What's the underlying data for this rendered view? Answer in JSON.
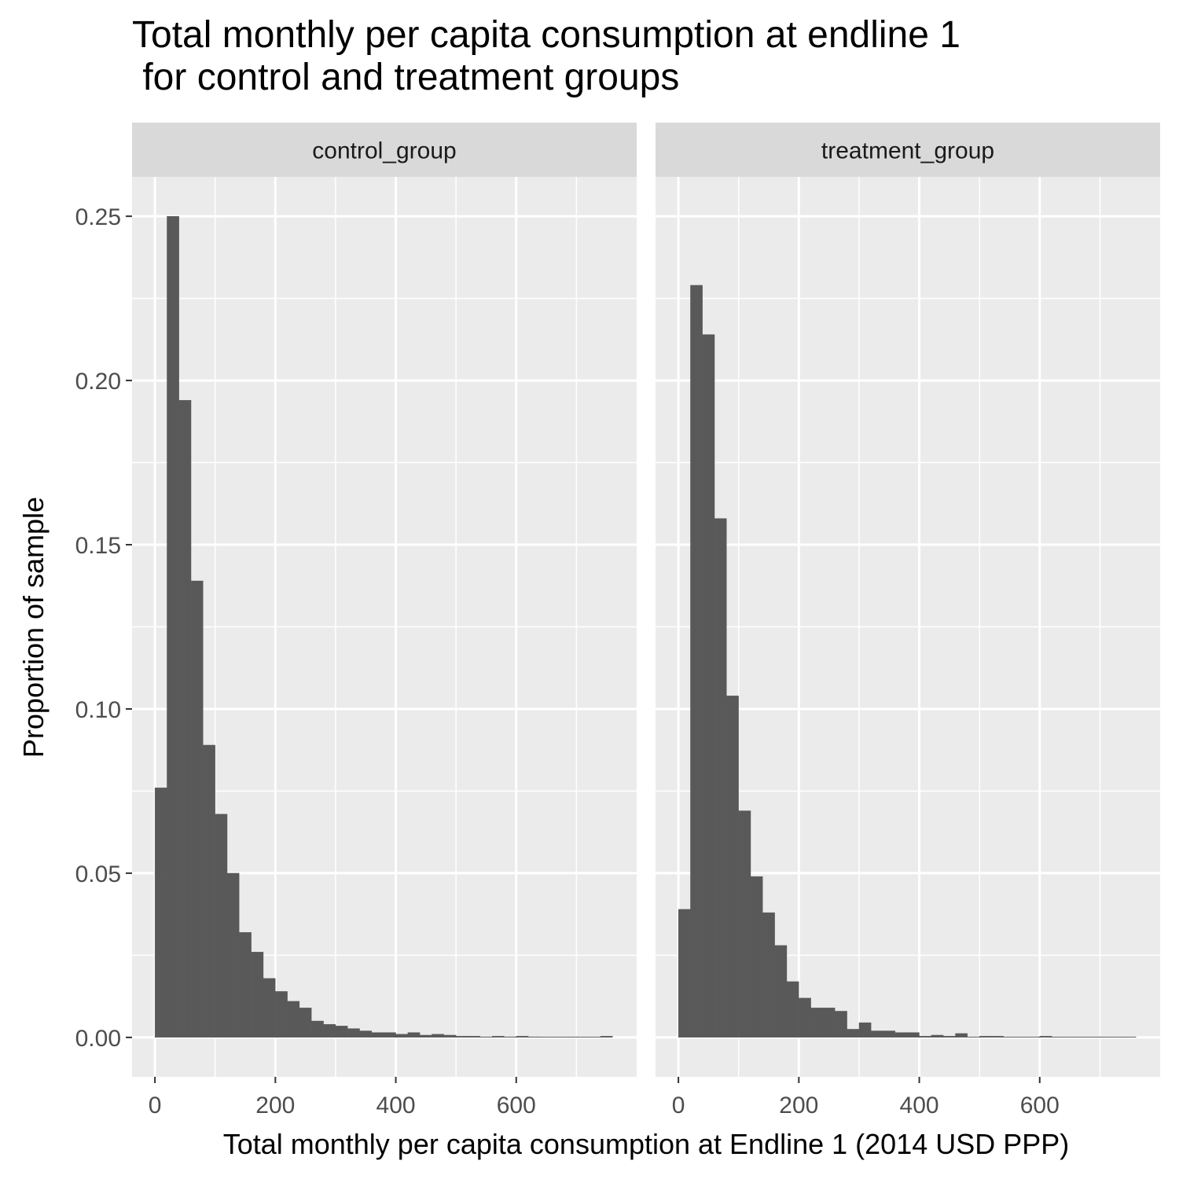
{
  "chart_data": {
    "type": "bar",
    "title": "Total monthly per capita consumption at endline 1\n for control and treatment groups",
    "xlabel": "Total monthly per capita consumption at Endline 1 (2014 USD PPP)",
    "ylabel": "Proportion of sample",
    "xlim": [
      -38,
      800
    ],
    "ylim": [
      -0.012,
      0.262
    ],
    "x_ticks": [
      0,
      200,
      400,
      600
    ],
    "y_ticks": [
      0.0,
      0.05,
      0.1,
      0.15,
      0.2,
      0.25
    ],
    "y_tick_labels": [
      "0.00",
      "0.05",
      "0.10",
      "0.15",
      "0.20",
      "0.25"
    ],
    "bin_width": 20,
    "grid": true,
    "colors": {
      "panel_background": "#ebebeb",
      "strip_background": "#d9d9d9",
      "bar_fill": "#595959",
      "grid": "#ffffff"
    },
    "panels": [
      {
        "name": "control_group",
        "bins": [
          {
            "x": 0,
            "value": 0.076
          },
          {
            "x": 20,
            "value": 0.25
          },
          {
            "x": 40,
            "value": 0.194
          },
          {
            "x": 60,
            "value": 0.139
          },
          {
            "x": 80,
            "value": 0.089
          },
          {
            "x": 100,
            "value": 0.068
          },
          {
            "x": 120,
            "value": 0.05
          },
          {
            "x": 140,
            "value": 0.032
          },
          {
            "x": 160,
            "value": 0.026
          },
          {
            "x": 180,
            "value": 0.018
          },
          {
            "x": 200,
            "value": 0.014
          },
          {
            "x": 220,
            "value": 0.011
          },
          {
            "x": 240,
            "value": 0.009
          },
          {
            "x": 260,
            "value": 0.005
          },
          {
            "x": 280,
            "value": 0.004
          },
          {
            "x": 300,
            "value": 0.0035
          },
          {
            "x": 320,
            "value": 0.0027
          },
          {
            "x": 340,
            "value": 0.002
          },
          {
            "x": 360,
            "value": 0.0015
          },
          {
            "x": 380,
            "value": 0.0015
          },
          {
            "x": 400,
            "value": 0.001
          },
          {
            "x": 420,
            "value": 0.0015
          },
          {
            "x": 440,
            "value": 0.0007
          },
          {
            "x": 460,
            "value": 0.001
          },
          {
            "x": 480,
            "value": 0.0007
          },
          {
            "x": 500,
            "value": 0.0004
          },
          {
            "x": 520,
            "value": 0.0004
          },
          {
            "x": 540,
            "value": 0.0002
          },
          {
            "x": 560,
            "value": 0.0004
          },
          {
            "x": 580,
            "value": 0.0002
          },
          {
            "x": 600,
            "value": 0.0004
          },
          {
            "x": 620,
            "value": 0.0002
          },
          {
            "x": 640,
            "value": 0.0
          },
          {
            "x": 660,
            "value": 0.0
          },
          {
            "x": 680,
            "value": 0.0
          },
          {
            "x": 700,
            "value": 0.0
          },
          {
            "x": 720,
            "value": 0.0
          },
          {
            "x": 740,
            "value": 0.0004
          }
        ]
      },
      {
        "name": "treatment_group",
        "bins": [
          {
            "x": 0,
            "value": 0.039
          },
          {
            "x": 20,
            "value": 0.229
          },
          {
            "x": 40,
            "value": 0.214
          },
          {
            "x": 60,
            "value": 0.158
          },
          {
            "x": 80,
            "value": 0.104
          },
          {
            "x": 100,
            "value": 0.069
          },
          {
            "x": 120,
            "value": 0.049
          },
          {
            "x": 140,
            "value": 0.038
          },
          {
            "x": 160,
            "value": 0.028
          },
          {
            "x": 180,
            "value": 0.017
          },
          {
            "x": 200,
            "value": 0.012
          },
          {
            "x": 220,
            "value": 0.009
          },
          {
            "x": 240,
            "value": 0.009
          },
          {
            "x": 260,
            "value": 0.008
          },
          {
            "x": 280,
            "value": 0.0025
          },
          {
            "x": 300,
            "value": 0.0045
          },
          {
            "x": 320,
            "value": 0.002
          },
          {
            "x": 340,
            "value": 0.002
          },
          {
            "x": 360,
            "value": 0.0015
          },
          {
            "x": 380,
            "value": 0.0015
          },
          {
            "x": 400,
            "value": 0.0004
          },
          {
            "x": 420,
            "value": 0.0007
          },
          {
            "x": 440,
            "value": 0.0004
          },
          {
            "x": 460,
            "value": 0.0012
          },
          {
            "x": 480,
            "value": 0.0
          },
          {
            "x": 500,
            "value": 0.0004
          },
          {
            "x": 520,
            "value": 0.0004
          },
          {
            "x": 540,
            "value": 0.0
          },
          {
            "x": 560,
            "value": 0.0
          },
          {
            "x": 580,
            "value": 0.0
          },
          {
            "x": 600,
            "value": 0.0004
          },
          {
            "x": 620,
            "value": 0.0
          },
          {
            "x": 640,
            "value": 0.0
          },
          {
            "x": 660,
            "value": 0.0
          },
          {
            "x": 680,
            "value": 0.0
          },
          {
            "x": 700,
            "value": 0.0
          },
          {
            "x": 720,
            "value": 0.0
          },
          {
            "x": 740,
            "value": 0.0
          }
        ]
      }
    ]
  }
}
